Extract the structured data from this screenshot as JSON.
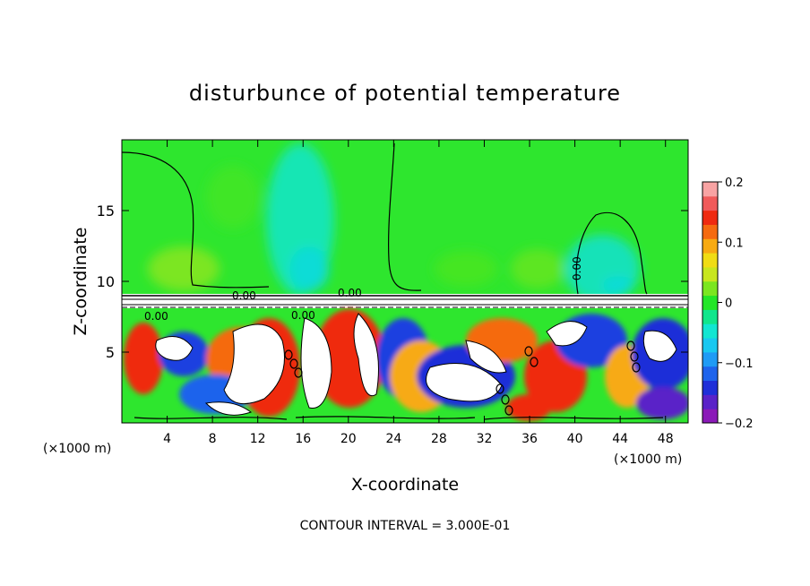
{
  "chart_data": {
    "type": "heatmap",
    "title": "disturbunce of potential temperature",
    "xlabel": "X-coordinate",
    "ylabel": "Z-coordinate",
    "x_unit_left": "(×1000 m)",
    "x_unit_right": "(×1000 m)",
    "xlim": [
      0,
      50
    ],
    "ylim": [
      0,
      20
    ],
    "x_ticks": [
      4,
      8,
      12,
      16,
      20,
      24,
      28,
      32,
      36,
      40,
      44,
      48
    ],
    "y_ticks": [
      5,
      10,
      15
    ],
    "colorbar": {
      "range": [
        -0.2,
        0.2
      ],
      "ticks": [
        {
          "value": 0.2,
          "label": "0.2"
        },
        {
          "value": 0.1,
          "label": "0.1"
        },
        {
          "value": 0,
          "label": "0"
        },
        {
          "value": -0.1,
          "label": "−0.1"
        },
        {
          "value": -0.2,
          "label": "−0.2"
        }
      ],
      "colors": [
        "#8b1ab8",
        "#5a22c8",
        "#1f2fd8",
        "#1e64ec",
        "#1f9bf5",
        "#19c8f0",
        "#12e6d2",
        "#10e68c",
        "#23e628",
        "#7be620",
        "#c8e61e",
        "#f0dc14",
        "#f7aa12",
        "#f56a10",
        "#ef2a10",
        "#f05a5a",
        "#f8a3a3"
      ]
    },
    "contour_interval": "CONTOUR INTERVAL = 3.000E-01",
    "contour_labels": [
      "0.00",
      "0.00",
      "0.00",
      "0.00",
      "0.00"
    ],
    "background_color": "#2ee62e",
    "upper_blob_color": "#19e0bb",
    "lower_warm_color": "#ef2a10",
    "lower_cool_color": "#1e3fe0"
  }
}
